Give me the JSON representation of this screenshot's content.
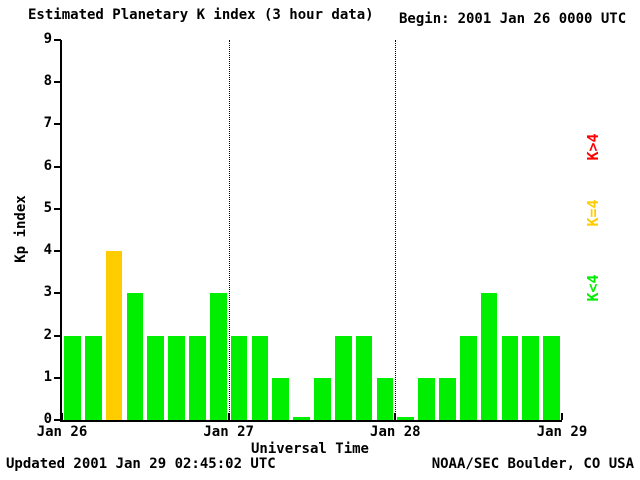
{
  "header": {
    "title": "Estimated Planetary K index (3 hour data)",
    "begin_label": "Begin:",
    "begin_value": "2001 Jan 26 0000 UTC"
  },
  "footer": {
    "updated": "Updated 2001 Jan 29 02:45:02 UTC",
    "source": "NOAA/SEC Boulder, CO USA"
  },
  "chart_data": {
    "type": "bar",
    "title": "Estimated Planetary K index (3 hour data)",
    "xlabel": "Universal Time",
    "ylabel": "Kp index",
    "ylim": [
      0,
      9
    ],
    "yticks": [
      0,
      1,
      2,
      3,
      4,
      5,
      6,
      7,
      8,
      9
    ],
    "interval_hours": 3,
    "categories": [
      "Jan 26 00:00",
      "Jan 26 03:00",
      "Jan 26 06:00",
      "Jan 26 09:00",
      "Jan 26 12:00",
      "Jan 26 15:00",
      "Jan 26 18:00",
      "Jan 26 21:00",
      "Jan 27 00:00",
      "Jan 27 03:00",
      "Jan 27 06:00",
      "Jan 27 09:00",
      "Jan 27 12:00",
      "Jan 27 15:00",
      "Jan 27 18:00",
      "Jan 27 21:00",
      "Jan 28 00:00",
      "Jan 28 03:00",
      "Jan 28 06:00",
      "Jan 28 09:00",
      "Jan 28 12:00",
      "Jan 28 15:00",
      "Jan 28 18:00",
      "Jan 28 21:00"
    ],
    "values": [
      2,
      2,
      4,
      3,
      2,
      2,
      2,
      3,
      2,
      2,
      1,
      0,
      1,
      2,
      2,
      1,
      0,
      1,
      1,
      2,
      3,
      2,
      2,
      2
    ],
    "xticks": [
      {
        "label": "Jan 26",
        "pos": 0
      },
      {
        "label": "Jan 27",
        "pos": 8
      },
      {
        "label": "Jan 28",
        "pos": 16
      },
      {
        "label": "Jan 29",
        "pos": 24
      }
    ],
    "day_boundaries": [
      8,
      16
    ],
    "colors": {
      "below4": "#00ee00",
      "equal4": "#ffcc00",
      "above4": "#ff0000"
    },
    "color_rule": "green if K<4, yellow if K=4, red if K>4",
    "legend": [
      {
        "label": "K>4",
        "color": "#ff0000"
      },
      {
        "label": "K=4",
        "color": "#ffcc00"
      },
      {
        "label": "K<4",
        "color": "#00ee00"
      }
    ],
    "legend_position": "right",
    "background": "#ffffff",
    "axis_color": "#000000",
    "grid": "dotted vertical lines at day boundaries"
  }
}
